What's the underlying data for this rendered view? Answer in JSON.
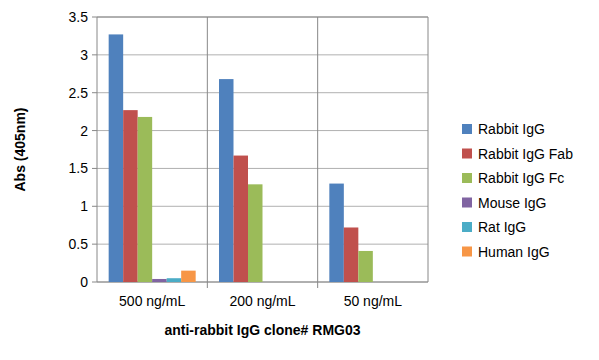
{
  "chart_data": {
    "type": "bar",
    "x_label": "anti-rabbit IgG clone# RMG03",
    "y_label": "Abs (405nm)",
    "categories": [
      "500 ng/mL",
      "200 ng/mL",
      "50 ng/mL"
    ],
    "series": [
      {
        "name": "Rabbit IgG",
        "color": "#4f81bd",
        "values": [
          3.27,
          2.68,
          1.3
        ]
      },
      {
        "name": "Rabbit IgG Fab",
        "color": "#c0504d",
        "values": [
          2.27,
          1.67,
          0.72
        ]
      },
      {
        "name": "Rabbit IgG Fc",
        "color": "#9bbb59",
        "values": [
          2.18,
          1.29,
          0.41
        ]
      },
      {
        "name": "Mouse IgG",
        "color": "#8064a2",
        "values": [
          0.04,
          0,
          0
        ]
      },
      {
        "name": "Rat IgG",
        "color": "#4bacc6",
        "values": [
          0.05,
          0,
          0
        ]
      },
      {
        "name": "Human IgG",
        "color": "#f79646",
        "values": [
          0.15,
          0,
          0
        ]
      }
    ],
    "ylim": [
      0,
      3.5
    ],
    "yticks": [
      0,
      0.5,
      1,
      1.5,
      2,
      2.5,
      3,
      3.5
    ],
    "grid": true,
    "legend": "right"
  }
}
